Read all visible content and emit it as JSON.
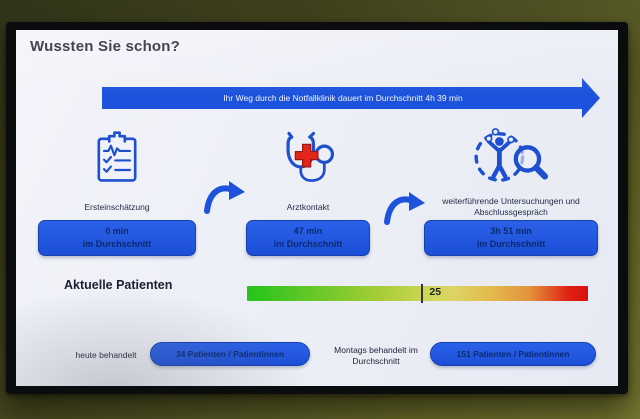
{
  "header": {
    "title": "Wussten Sie schon?"
  },
  "journey": {
    "arrow_label": "Ihr Weg durch die Notfallklinik dauert im Durchschnitt 4h 39 min"
  },
  "stages": [
    {
      "icon": "clipboard-checklist-icon",
      "label": "Ersteinschätzung",
      "duration": "0 min",
      "duration_caption": "im Durchschnitt"
    },
    {
      "icon": "stethoscope-icon",
      "label": "Arztkontakt",
      "duration": "47 min",
      "duration_caption": "im Durchschnitt"
    },
    {
      "icon": "patient-search-icon",
      "label": "weiterführende Untersuchungen und Abschlussgespräch",
      "duration": "3h 51 min",
      "duration_caption": "im Durchschnitt"
    }
  ],
  "current_patients": {
    "label": "Aktuelle Patienten",
    "value": "25",
    "marker_position_pct": 51,
    "scale": {
      "min_color": "#25c31c",
      "max_color": "#d80f0c"
    }
  },
  "stats": {
    "today": {
      "label": "heute behandelt",
      "value": "34 Patienten / Patientinnen"
    },
    "monday_avg": {
      "label": "Montags behandelt im Durchschnitt",
      "value": "151 Patienten / Patientinnen"
    }
  },
  "colors": {
    "accent_blue": "#1d53dc",
    "button_blue": "#1c4fd8",
    "button_text": "#0a2a6e",
    "cross_red": "#e2251b",
    "wall_olive": "#515324",
    "screen_bg": "#eef0f7"
  }
}
